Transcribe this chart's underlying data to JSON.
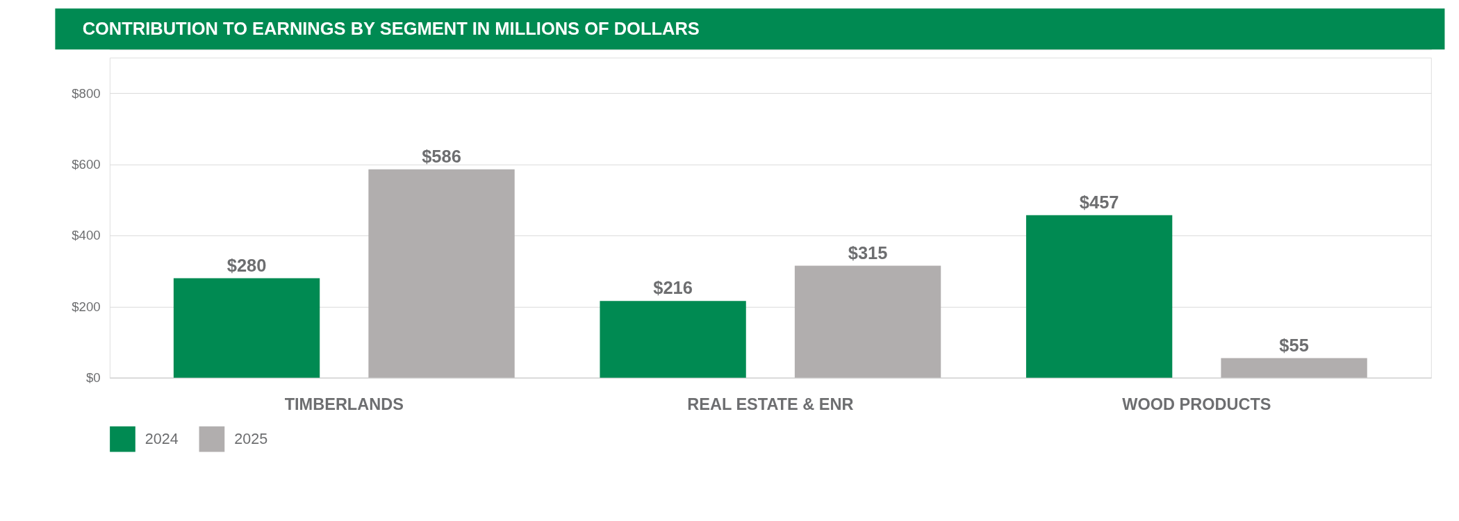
{
  "chart_data": {
    "type": "bar",
    "title": "CONTRIBUTION TO EARNINGS BY SEGMENT IN MILLIONS OF DOLLARS",
    "categories": [
      "TIMBERLANDS",
      "REAL ESTATE & ENR",
      "WOOD PRODUCTS"
    ],
    "series": [
      {
        "name": "2024",
        "color": "#008a52",
        "values": [
          280,
          216,
          457
        ],
        "value_labels": [
          "$280",
          "$216",
          "$457"
        ]
      },
      {
        "name": "2025",
        "color": "#b1aeae",
        "values": [
          586,
          315,
          55
        ],
        "value_labels": [
          "$586",
          "$315",
          "$55"
        ]
      }
    ],
    "ylim": [
      0,
      900
    ],
    "yticks": [
      {
        "value": 0,
        "label": "$0"
      },
      {
        "value": 200,
        "label": "$200"
      },
      {
        "value": 400,
        "label": "$400"
      },
      {
        "value": 600,
        "label": "$600"
      },
      {
        "value": 800,
        "label": "$800"
      }
    ],
    "grid": "y",
    "legend": "bottom left"
  }
}
